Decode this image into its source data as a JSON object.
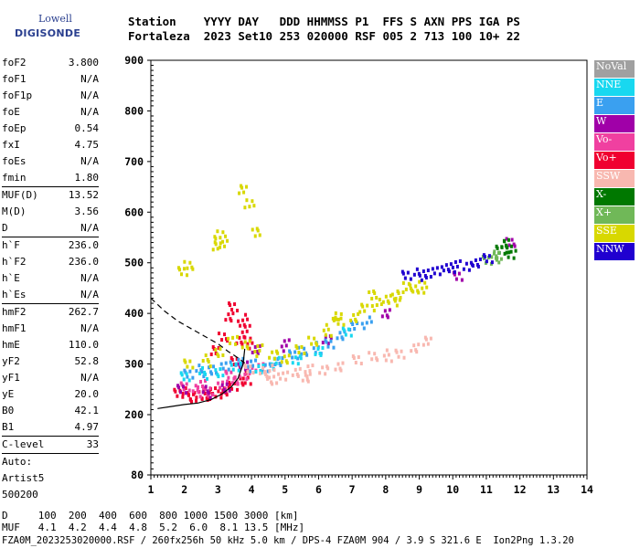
{
  "logo": {
    "line1": "Lowell",
    "line2": "DIGISONDE"
  },
  "header": {
    "line1": "Station    YYYY DAY   DDD HHMMSS P1  FFS S AXN PPS IGA PS",
    "line2": "Fortaleza  2023 Set10 253 020000 RSF 005 2 713 100 10+ 22"
  },
  "params": [
    {
      "label": "foF2",
      "value": "3.800"
    },
    {
      "label": "foF1",
      "value": "N/A"
    },
    {
      "label": "foF1p",
      "value": "N/A"
    },
    {
      "label": "foE",
      "value": "N/A"
    },
    {
      "label": "foEp",
      "value": "0.54"
    },
    {
      "label": "fxI",
      "value": "4.75"
    },
    {
      "label": "foEs",
      "value": "N/A"
    },
    {
      "label": "fmin",
      "value": "1.80"
    },
    {
      "sep": true
    },
    {
      "label": "MUF(D)",
      "value": "13.52"
    },
    {
      "label": "M(D)",
      "value": "3.56"
    },
    {
      "label": "D",
      "value": "N/A"
    },
    {
      "sep": true
    },
    {
      "label": "h`F",
      "value": "236.0"
    },
    {
      "label": "h`F2",
      "value": "236.0"
    },
    {
      "label": "h`E",
      "value": "N/A"
    },
    {
      "label": "h`Es",
      "value": "N/A"
    },
    {
      "sep": true
    },
    {
      "label": "hmF2",
      "value": "262.7"
    },
    {
      "label": "hmF1",
      "value": "N/A"
    },
    {
      "label": "hmE",
      "value": "110.0"
    },
    {
      "label": "yF2",
      "value": "52.8"
    },
    {
      "label": "yF1",
      "value": "N/A"
    },
    {
      "label": "yE",
      "value": "20.0"
    },
    {
      "label": "B0",
      "value": "42.1"
    },
    {
      "label": "B1",
      "value": "4.97"
    },
    {
      "sep": true
    },
    {
      "label": "C-level",
      "value": "33"
    },
    {
      "sep": true
    },
    {
      "label": "Auto:",
      "value": ""
    },
    {
      "label": "Artist5",
      "value": ""
    },
    {
      "label": "500200",
      "value": ""
    }
  ],
  "legend": [
    {
      "label": "NoVal",
      "color": "#a0a0a0"
    },
    {
      "label": "NNE",
      "color": "#18d8f0"
    },
    {
      "label": "E",
      "color": "#3aa0f0"
    },
    {
      "label": "W",
      "color": "#a000a8"
    },
    {
      "label": "Vo-",
      "color": "#f040a0"
    },
    {
      "label": "Vo+",
      "color": "#f00030"
    },
    {
      "label": "SSW",
      "color": "#f8b8b0"
    },
    {
      "label": "X-",
      "color": "#007800"
    },
    {
      "label": "X+",
      "color": "#70b858"
    },
    {
      "label": "SSE",
      "color": "#d8d800"
    },
    {
      "label": "NNW",
      "color": "#2000d0"
    }
  ],
  "footer": {
    "line1": "D     100  200  400  600  800 1000 1500 3000 [km]",
    "line2": "MUF   4.1  4.2  4.4  4.8  5.2  6.0  8.1 13.5 [MHz]",
    "line3": "FZA0M_2023253020000.RSF / 260fx256h 50 kHz 5.0 km / DPS-4 FZA0M 904 / 3.9 S 321.6 E  Ion2Png 1.3.20"
  },
  "chart_data": {
    "type": "scatter",
    "title": "",
    "xlabel": "",
    "ylabel": "",
    "xlim": [
      1,
      14
    ],
    "ylim": [
      80,
      900
    ],
    "xticks": [
      1,
      2,
      3,
      4,
      5,
      6,
      7,
      8,
      9,
      10,
      11,
      12,
      13,
      14
    ],
    "yticks": [
      80,
      200,
      300,
      400,
      500,
      600,
      700,
      800,
      900
    ],
    "grid": false,
    "legend_position": "right",
    "series": [
      {
        "name": "Vo+",
        "color": "#f00030",
        "points": [
          [
            1.8,
            242
          ],
          [
            2.0,
            245
          ],
          [
            2.2,
            240
          ],
          [
            2.4,
            243
          ],
          [
            2.6,
            238
          ],
          [
            2.8,
            245
          ],
          [
            3.0,
            248
          ],
          [
            3.2,
            252
          ],
          [
            3.4,
            258
          ],
          [
            3.6,
            266
          ],
          [
            3.8,
            275
          ],
          [
            3.5,
            310
          ],
          [
            3.6,
            350
          ],
          [
            3.8,
            370
          ],
          [
            3.7,
            390
          ],
          [
            3.3,
            400
          ],
          [
            2.9,
            330
          ],
          [
            3.1,
            355
          ],
          [
            3.9,
            345
          ],
          [
            3.4,
            420
          ]
        ]
      },
      {
        "name": "Vo-",
        "color": "#f040a0",
        "points": [
          [
            2.0,
            255
          ],
          [
            2.3,
            250
          ],
          [
            2.7,
            252
          ],
          [
            3.1,
            262
          ],
          [
            3.5,
            270
          ],
          [
            3.9,
            285
          ],
          [
            4.2,
            300
          ],
          [
            2.5,
            265
          ],
          [
            3.3,
            280
          ]
        ]
      },
      {
        "name": "W",
        "color": "#a000a8",
        "points": [
          [
            1.9,
            250
          ],
          [
            2.6,
            248
          ],
          [
            3.2,
            260
          ],
          [
            3.7,
            300
          ],
          [
            4.1,
            330
          ],
          [
            5.0,
            340
          ],
          [
            6.2,
            355
          ],
          [
            8.0,
            405
          ],
          [
            10.1,
            475
          ],
          [
            11.7,
            540
          ]
        ]
      },
      {
        "name": "E",
        "color": "#3aa0f0",
        "points": [
          [
            2.1,
            280
          ],
          [
            2.4,
            290
          ],
          [
            2.8,
            295
          ],
          [
            3.2,
            300
          ],
          [
            3.6,
            305
          ],
          [
            4.0,
            300
          ],
          [
            4.4,
            300
          ],
          [
            4.8,
            310
          ],
          [
            5.2,
            320
          ],
          [
            5.5,
            325
          ],
          [
            5.9,
            335
          ],
          [
            6.3,
            345
          ],
          [
            6.6,
            360
          ],
          [
            7.0,
            375
          ],
          [
            7.4,
            385
          ]
        ]
      },
      {
        "name": "NNE",
        "color": "#18d8f0",
        "points": [
          [
            2.0,
            275
          ],
          [
            2.5,
            285
          ],
          [
            3.0,
            290
          ],
          [
            3.5,
            298
          ],
          [
            4.2,
            292
          ],
          [
            4.7,
            305
          ],
          [
            5.3,
            315
          ],
          [
            6.0,
            330
          ],
          [
            6.8,
            365
          ]
        ]
      },
      {
        "name": "SSE",
        "color": "#d8d800",
        "points": [
          [
            2.1,
            300
          ],
          [
            2.6,
            310
          ],
          [
            3.0,
            330
          ],
          [
            3.4,
            350
          ],
          [
            3.8,
            340
          ],
          [
            4.2,
            330
          ],
          [
            4.6,
            325
          ],
          [
            5.0,
            315
          ],
          [
            5.4,
            330
          ],
          [
            5.8,
            345
          ],
          [
            6.2,
            370
          ],
          [
            6.6,
            390
          ],
          [
            7.0,
            395
          ],
          [
            7.3,
            410
          ],
          [
            7.7,
            420
          ],
          [
            8.0,
            435
          ],
          [
            8.4,
            440
          ],
          [
            8.8,
            450
          ],
          [
            9.1,
            455
          ],
          [
            1.9,
            490
          ],
          [
            2.1,
            500
          ],
          [
            2.9,
            535
          ],
          [
            3.0,
            555
          ],
          [
            3.1,
            545
          ],
          [
            3.7,
            650
          ],
          [
            3.9,
            620
          ],
          [
            4.1,
            560
          ],
          [
            8.3,
            430
          ],
          [
            8.6,
            460
          ],
          [
            7.6,
            440
          ],
          [
            6.5,
            395
          ]
        ]
      },
      {
        "name": "SSW",
        "color": "#f8b8b0",
        "points": [
          [
            3.9,
            290
          ],
          [
            4.3,
            285
          ],
          [
            4.6,
            275
          ],
          [
            4.9,
            280
          ],
          [
            5.3,
            285
          ],
          [
            5.7,
            290
          ],
          [
            6.1,
            295
          ],
          [
            6.6,
            300
          ],
          [
            7.1,
            310
          ],
          [
            7.6,
            315
          ],
          [
            8.0,
            320
          ],
          [
            8.4,
            325
          ],
          [
            8.8,
            335
          ],
          [
            9.2,
            345
          ],
          [
            4.5,
            290
          ],
          [
            5.6,
            280
          ]
        ]
      },
      {
        "name": "X-",
        "color": "#007800",
        "points": [
          [
            11.4,
            525
          ],
          [
            11.5,
            535
          ],
          [
            11.6,
            545
          ],
          [
            11.7,
            520
          ]
        ]
      },
      {
        "name": "X+",
        "color": "#70b858",
        "points": [
          [
            11.0,
            505
          ],
          [
            11.2,
            515
          ],
          [
            11.3,
            520
          ]
        ]
      },
      {
        "name": "NNW",
        "color": "#2000d0",
        "points": [
          [
            8.6,
            475
          ],
          [
            8.9,
            480
          ],
          [
            9.2,
            485
          ],
          [
            9.5,
            488
          ],
          [
            9.8,
            492
          ],
          [
            10.1,
            496
          ],
          [
            10.4,
            500
          ],
          [
            10.7,
            505
          ],
          [
            11.0,
            510
          ]
        ]
      },
      {
        "name": "NoVal",
        "color": "#a0a0a0",
        "points": []
      }
    ],
    "profile_curve": [
      [
        1.2,
        212
      ],
      [
        1.6,
        216
      ],
      [
        2.0,
        220
      ],
      [
        2.4,
        223
      ],
      [
        2.8,
        230
      ],
      [
        3.1,
        240
      ],
      [
        3.4,
        255
      ],
      [
        3.6,
        272
      ],
      [
        3.75,
        300
      ],
      [
        3.8,
        330
      ]
    ],
    "profile_dashed": [
      [
        1.0,
        430
      ],
      [
        1.4,
        405
      ],
      [
        1.8,
        385
      ],
      [
        2.2,
        370
      ],
      [
        2.6,
        355
      ],
      [
        3.0,
        340
      ],
      [
        3.3,
        325
      ],
      [
        3.6,
        312
      ],
      [
        3.8,
        302
      ]
    ]
  }
}
